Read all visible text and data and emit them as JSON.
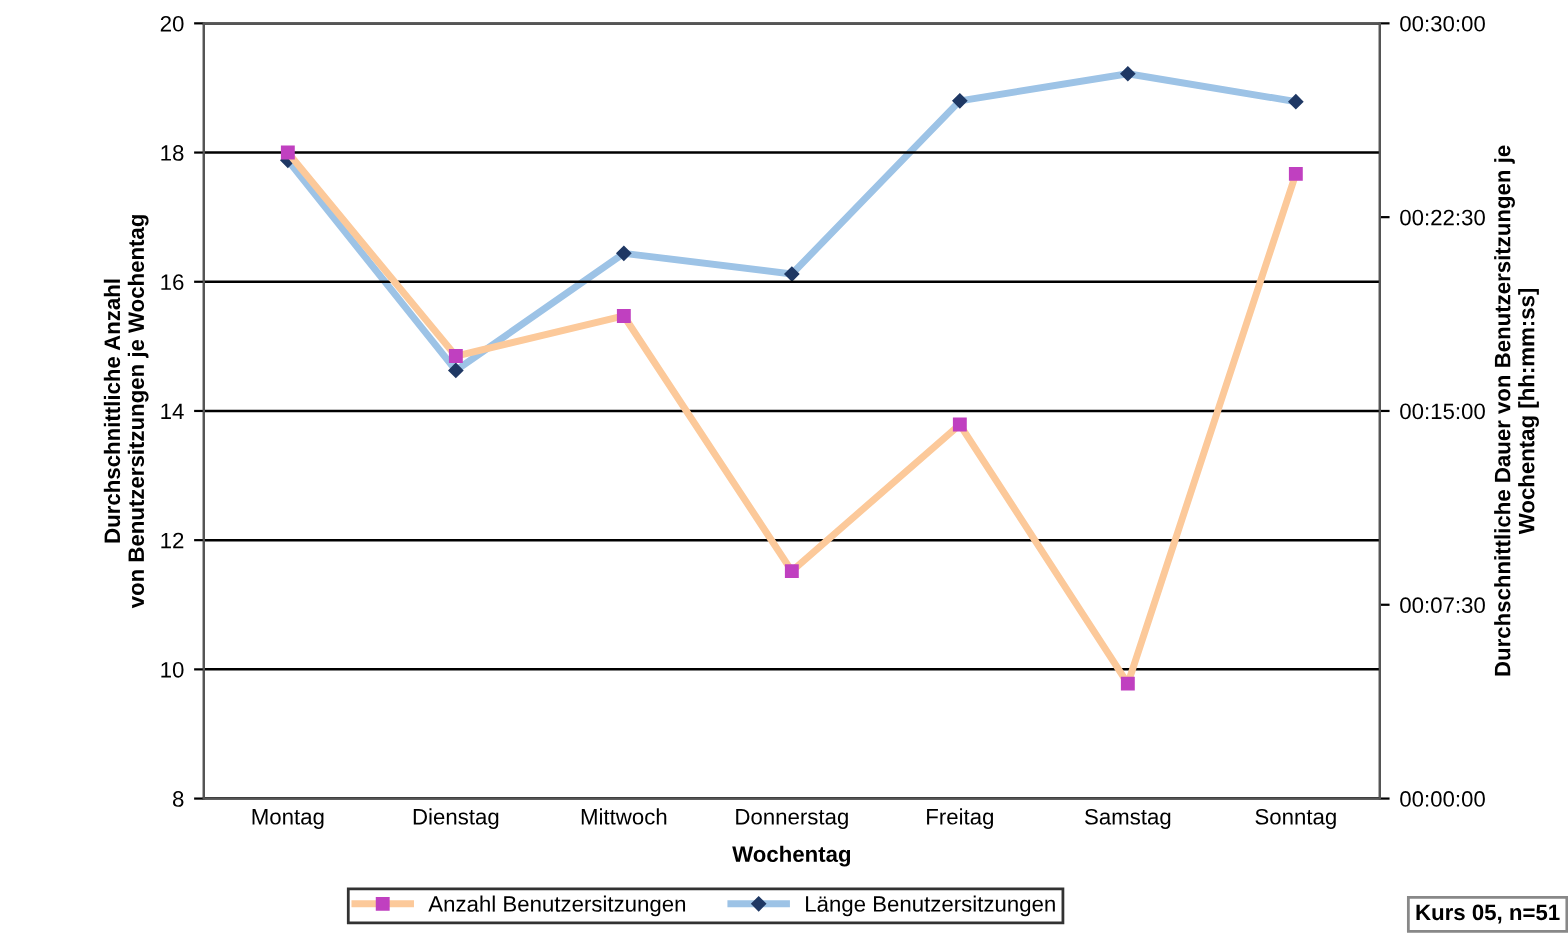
{
  "chart_data": {
    "type": "line",
    "categories": [
      "Montag",
      "Dienstag",
      "Mittwoch",
      "Donnerstag",
      "Freitag",
      "Samstag",
      "Sonntag"
    ],
    "xlabel": "Wochentag",
    "ylabel": "Durchschnittliche Anzahl\nvon Benutzersitzungen je Wochentag",
    "y2label": "Durchschnittliche Dauer von Benutzersitzungen je\nWochentag [hh:mm:ss]",
    "series": [
      {
        "name": "Anzahl Benutzersitzungen",
        "color": "#fcc99a",
        "marker": "square",
        "values": [
          18.0,
          14.85,
          15.47,
          11.52,
          13.79,
          9.78,
          17.67
        ]
      },
      {
        "name": "Länge Benutzersitzungen",
        "color": "#9dc3e6",
        "marker": "diamond",
        "axis": "y2",
        "values": [
          24.7,
          16.57,
          21.1,
          20.3,
          27.0,
          28.05,
          26.97
        ]
      }
    ],
    "ylim": [
      8,
      20
    ],
    "yticks": [
      8,
      10,
      12,
      14,
      16,
      18,
      20
    ],
    "y2lim": [
      0,
      30
    ],
    "y2ticks": [
      {
        "value": 0,
        "label": "00:00:00"
      },
      {
        "value": 7.5,
        "label": "00:07:30"
      },
      {
        "value": 15,
        "label": "00:15:00"
      },
      {
        "value": 22.5,
        "label": "00:22:30"
      },
      {
        "value": 30,
        "label": "00:30:00"
      }
    ],
    "grid": "y",
    "legend": "bottom",
    "annotations": [
      "Kurs 05, n=51"
    ]
  }
}
